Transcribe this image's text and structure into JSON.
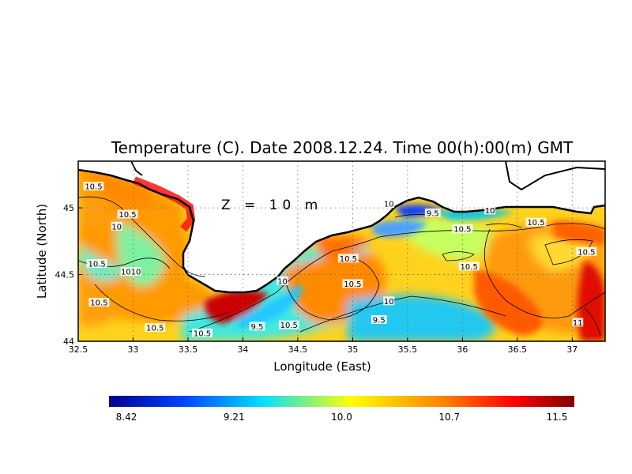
{
  "chart_data": {
    "type": "heatmap",
    "title": "Temperature (C). Date 2008.12.24. Time 00(h):00(m) GMT",
    "annotation": "Z = 10 m",
    "xlabel": "Longitude (East)",
    "ylabel": "Latitude (North)",
    "xlim": [
      32.5,
      37.3
    ],
    "ylim": [
      44.0,
      45.35
    ],
    "x_ticks": [
      "32.5",
      "33",
      "33.5",
      "34",
      "34.5",
      "35",
      "35.5",
      "36",
      "36.5",
      "37"
    ],
    "y_ticks": [
      "44",
      "44.5",
      "45"
    ],
    "grid": true,
    "colorscale": {
      "min": 8.42,
      "max": 11.5,
      "tick_labels": [
        "8.42",
        "9.21",
        "10.0",
        "10.7",
        "11.5"
      ],
      "colors": [
        "#00008f",
        "#0044ff",
        "#00e0ff",
        "#ffff00",
        "#ff8000",
        "#ff0000",
        "#800000"
      ]
    },
    "contour_labels": [
      {
        "text": "10.5",
        "lon": 32.64,
        "lat": 45.16
      },
      {
        "text": "10.5",
        "lon": 32.95,
        "lat": 44.95
      },
      {
        "text": "10",
        "lon": 32.85,
        "lat": 44.86
      },
      {
        "text": "10.5",
        "lon": 32.67,
        "lat": 44.58
      },
      {
        "text": "1010",
        "lon": 32.98,
        "lat": 44.52
      },
      {
        "text": "10.5",
        "lon": 32.69,
        "lat": 44.29
      },
      {
        "text": "10.5",
        "lon": 33.2,
        "lat": 44.1
      },
      {
        "text": "10.5",
        "lon": 33.63,
        "lat": 44.06
      },
      {
        "text": "9.5",
        "lon": 34.13,
        "lat": 44.11
      },
      {
        "text": "10",
        "lon": 34.36,
        "lat": 44.45
      },
      {
        "text": "10.5",
        "lon": 34.42,
        "lat": 44.12
      },
      {
        "text": "10.5",
        "lon": 34.96,
        "lat": 44.62
      },
      {
        "text": "10.5",
        "lon": 35.0,
        "lat": 44.43
      },
      {
        "text": "10",
        "lon": 35.33,
        "lat": 44.3
      },
      {
        "text": "9.5",
        "lon": 35.24,
        "lat": 44.16
      },
      {
        "text": "10",
        "lon": 35.33,
        "lat": 45.03
      },
      {
        "text": "9.5",
        "lon": 35.73,
        "lat": 44.96
      },
      {
        "text": "10",
        "lon": 36.25,
        "lat": 44.98
      },
      {
        "text": "10.5",
        "lon": 36.0,
        "lat": 44.84
      },
      {
        "text": "10.5",
        "lon": 36.06,
        "lat": 44.56
      },
      {
        "text": "10.5",
        "lon": 36.67,
        "lat": 44.89
      },
      {
        "text": "10.5",
        "lon": 37.13,
        "lat": 44.67
      },
      {
        "text": "11",
        "lon": 37.05,
        "lat": 44.14
      }
    ]
  }
}
